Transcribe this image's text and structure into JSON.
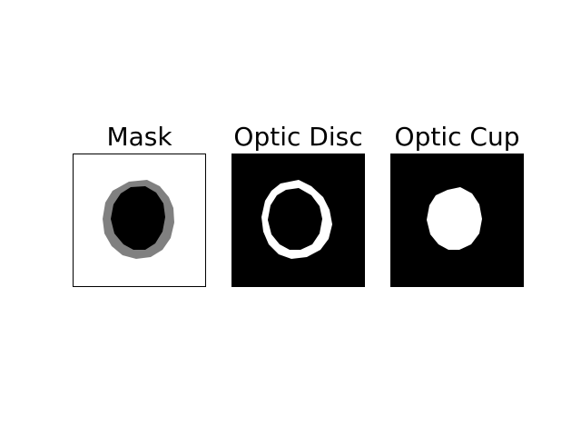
{
  "figure": {
    "panels": [
      {
        "title": "Mask"
      },
      {
        "title": "Optic Disc"
      },
      {
        "title": "Optic Cup"
      }
    ]
  },
  "colors": {
    "background": "#000000",
    "foreground": "#ffffff",
    "disc_ring_gray": "#808080",
    "mask_background": "#ffffff",
    "mask_cup": "#000000"
  }
}
